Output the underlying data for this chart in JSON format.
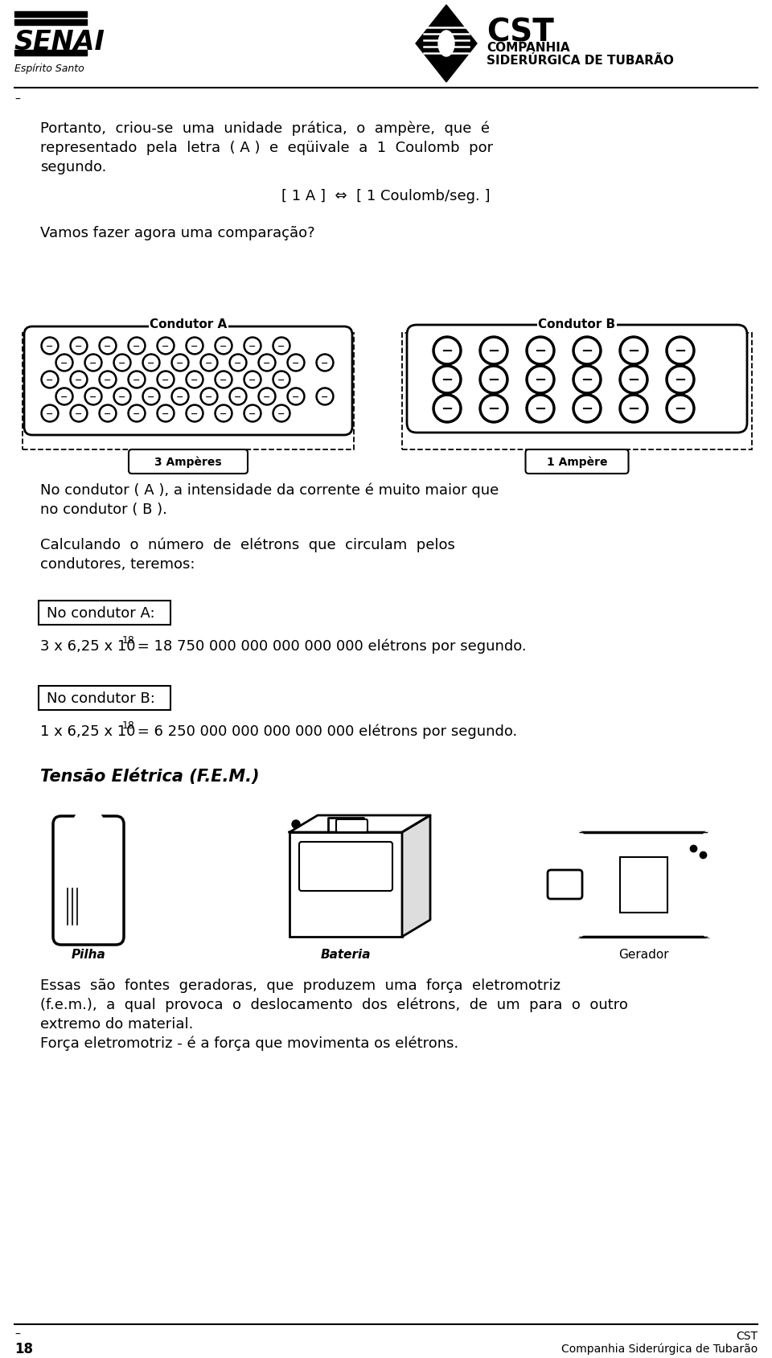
{
  "bg_color": "#ffffff",
  "text_color": "#000000",
  "header_left_title": "SENAI",
  "header_left_subtitle": "Espírito Santo",
  "header_right_line1": "COMPANHIA",
  "header_right_line2": "SIDERÚRGICA DE TUBARÃO",
  "page_number": "18",
  "para1_line1": "Portanto,  criou-se  uma  unidade  prática,  o  ampère,  que  é",
  "para1_line2": "representado  pela  letra  ( A )  e  eqüivale  a  1  Coulomb  por",
  "para1_line3": "segundo.",
  "formula_line": "[ 1 A ]  ⇔  [ 1 Coulomb/seg. ]",
  "para2_line1": "Vamos fazer agora uma comparação?",
  "conductor_a_label": "Condutor A",
  "conductor_b_label": "Condutor B",
  "ampere_a_label": "3 Ampères",
  "ampere_b_label": "1 Ampère",
  "para3_line1": "No condutor ( A ), a intensidade da corrente é muito maior que",
  "para3_line2": "no condutor ( B ).",
  "para4_line1": "Calculando  o  número  de  elétrons  que  circulam  pelos",
  "para4_line2": "condutores, teremos:",
  "box_a_label": "No condutor A:",
  "formula_a_prefix": "3 x 6,25 x 10",
  "formula_a_exp": "18",
  "formula_a_suffix": " = 18 750 000 000 000 000 000 elétrons por segundo.",
  "box_b_label": "No condutor B:",
  "formula_b_prefix": "1 x 6,25 x 10",
  "formula_b_exp": "18",
  "formula_b_suffix": " = 6 250 000 000 000 000 000 elétrons por segundo.",
  "tensao_title": "Tensão Elétrica (F.E.M.)",
  "label_pilha": "Pilha",
  "label_bateria": "Bateria",
  "label_gerador": "Gerador",
  "para5_line1": "Essas  são  fontes  geradoras,  que  produzem  uma  força  eletromotriz",
  "para5_line2": "(f.e.m.),  a  qual  provoca  o  deslocamento  dos  elétrons,  de  um  para  o  outro",
  "para5_line3": "extremo do material.",
  "para5_line4": "Força eletromotriz - é a força que movimenta os elétrons."
}
